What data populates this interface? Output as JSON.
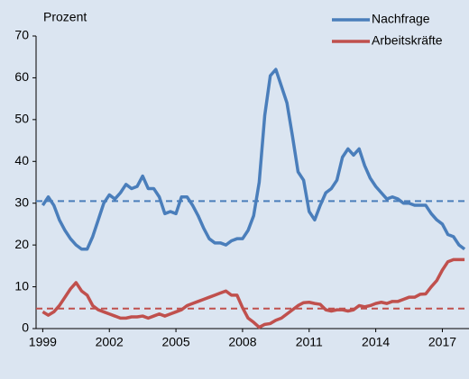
{
  "chart_data": {
    "type": "line",
    "y_axis_label": "Prozent",
    "x": [
      1999,
      1999.25,
      1999.5,
      1999.75,
      2000,
      2000.25,
      2000.5,
      2000.75,
      2001,
      2001.25,
      2001.5,
      2001.75,
      2002,
      2002.25,
      2002.5,
      2002.75,
      2003,
      2003.25,
      2003.5,
      2003.75,
      2004,
      2004.25,
      2004.5,
      2004.75,
      2005,
      2005.25,
      2005.5,
      2005.75,
      2006,
      2006.25,
      2006.5,
      2006.75,
      2007,
      2007.25,
      2007.5,
      2007.75,
      2008,
      2008.25,
      2008.5,
      2008.75,
      2009,
      2009.25,
      2009.5,
      2009.75,
      2010,
      2010.25,
      2010.5,
      2010.75,
      2011,
      2011.25,
      2011.5,
      2011.75,
      2012,
      2012.25,
      2012.5,
      2012.75,
      2013,
      2013.25,
      2013.5,
      2013.75,
      2014,
      2014.25,
      2014.5,
      2014.75,
      2015,
      2015.25,
      2015.5,
      2015.75,
      2016,
      2016.25,
      2016.5,
      2016.75,
      2017,
      2017.25,
      2017.5,
      2017.75,
      2018
    ],
    "series": [
      {
        "name": "Nachfrage",
        "color": "#4a7ebb",
        "values": [
          29.5,
          31.5,
          29.5,
          26,
          23.5,
          21.5,
          20,
          19,
          19,
          22,
          26,
          30,
          32,
          31,
          32.5,
          34.5,
          33.5,
          34,
          36.5,
          33.5,
          33.5,
          31.5,
          27.5,
          28,
          27.5,
          31.5,
          31.5,
          29.5,
          27,
          24,
          21.5,
          20.5,
          20.5,
          20,
          21,
          21.5,
          21.5,
          23.5,
          27,
          35,
          51,
          60.5,
          62,
          58,
          54,
          46,
          37.5,
          35.5,
          28,
          26,
          29.5,
          32.5,
          33.5,
          35.5,
          41,
          43,
          41.5,
          43,
          39,
          36,
          34,
          32.5,
          31,
          31.5,
          31,
          30,
          30,
          29.5,
          29.5,
          29.5,
          27.5,
          26,
          25,
          22.5,
          22,
          20,
          19
        ]
      },
      {
        "name": "Arbeitskräfte",
        "color": "#c0504d",
        "values": [
          4,
          3.2,
          4,
          5.5,
          7.5,
          9.5,
          11,
          9,
          8,
          5.5,
          4.5,
          4,
          3.5,
          3,
          2.5,
          2.5,
          2.8,
          2.8,
          3,
          2.5,
          3,
          3.5,
          3,
          3.5,
          4,
          4.5,
          5.5,
          6,
          6.5,
          7,
          7.5,
          8,
          8.5,
          9,
          8,
          8,
          5,
          2.5,
          1.5,
          0.3,
          1,
          1.2,
          2,
          2.5,
          3.5,
          4.5,
          5.5,
          6.2,
          6.3,
          6,
          5.8,
          4.5,
          4.2,
          4.5,
          4.5,
          4.2,
          4.5,
          5.5,
          5.2,
          5.5,
          6,
          6.3,
          6,
          6.5,
          6.5,
          7,
          7.5,
          7.5,
          8.2,
          8.3,
          10,
          11.5,
          14,
          16,
          16.5,
          16.5,
          16.5
        ]
      }
    ],
    "reference_lines": [
      {
        "value": 30.5,
        "color": "#4a7ebb"
      },
      {
        "value": 4.8,
        "color": "#c0504d"
      }
    ],
    "xlim": [
      1998.7,
      2018.2
    ],
    "xticks": [
      1999,
      2002,
      2005,
      2008,
      2011,
      2014,
      2017
    ],
    "ylim": [
      0,
      70
    ],
    "yticks": [
      0,
      10,
      20,
      30,
      40,
      50,
      60,
      70
    ]
  }
}
